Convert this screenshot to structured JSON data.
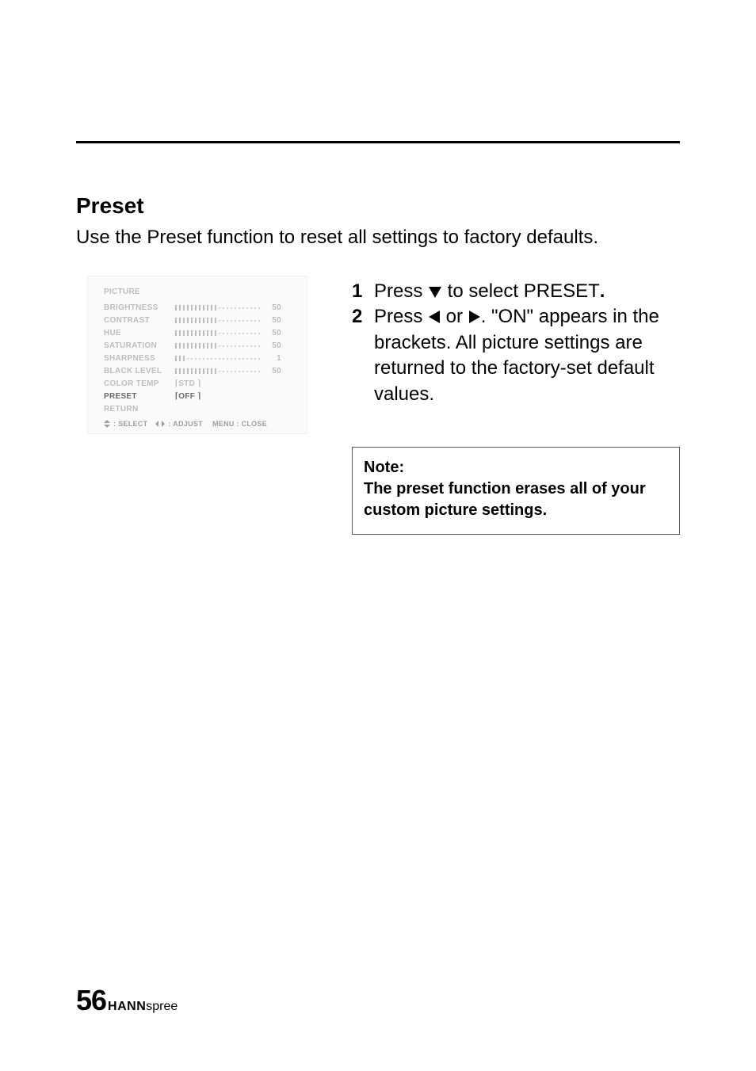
{
  "heading": "Preset",
  "intro": "Use the Preset function to reset all settings to factory defaults.",
  "osd": {
    "title": "PICTURE",
    "rows": [
      {
        "label": "BRIGHTNESS",
        "value": "50",
        "fill": 0.5,
        "type": "bar",
        "active": false
      },
      {
        "label": "CONTRAST",
        "value": "50",
        "fill": 0.5,
        "type": "bar",
        "active": false
      },
      {
        "label": "HUE",
        "value": "50",
        "fill": 0.5,
        "type": "bar",
        "active": false
      },
      {
        "label": "SATURATION",
        "value": "50",
        "fill": 0.5,
        "type": "bar",
        "active": false
      },
      {
        "label": "SHARPNESS",
        "value": "1",
        "fill": 0.12,
        "type": "bar",
        "active": false
      },
      {
        "label": "BLACK LEVEL",
        "value": "50",
        "fill": 0.5,
        "type": "bar",
        "active": false
      },
      {
        "label": "COLOR TEMP",
        "value": "STD",
        "type": "bracket",
        "active": false
      },
      {
        "label": "PRESET",
        "value": "OFF",
        "type": "bracket",
        "active": true
      },
      {
        "label": "RETURN",
        "value": "",
        "type": "none",
        "active": false
      }
    ],
    "footer": {
      "select": ": SELECT",
      "adjust": ": ADJUST",
      "close": "MENU : CLOSE"
    },
    "colors": {
      "dim": "#bdbdbd",
      "active": "#6a6a6a",
      "bar_fill": "#bdbdbd",
      "bar_dot": "#d6d6d6"
    }
  },
  "steps": [
    {
      "n": "1",
      "pre": "Press ",
      "tri": "down",
      "post": " to select PRESET",
      "tail": "."
    },
    {
      "n": "2",
      "pre": "Press ",
      "tri": "left",
      "mid": " or ",
      "tri2": "right",
      "post": ". \"ON\" appears in the brackets. All picture settings are returned to the factory-set default values."
    }
  ],
  "note": {
    "title": "Note:",
    "body": "The preset function erases all of your custom picture settings."
  },
  "footer": {
    "page": "56",
    "brand1": "HANN",
    "brand2": "spree"
  }
}
